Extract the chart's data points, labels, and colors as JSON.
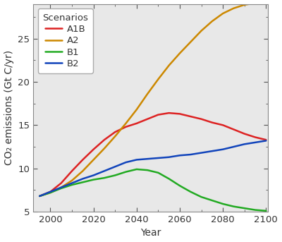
{
  "title": "",
  "xlabel": "Year",
  "ylabel": "CO₂ emissions (Gt C/yr)",
  "legend_title": "Scenarios",
  "xlim": [
    1992,
    2101
  ],
  "ylim": [
    5,
    29
  ],
  "yticks": [
    5,
    10,
    15,
    20,
    25
  ],
  "xticks": [
    2000,
    2020,
    2040,
    2060,
    2080,
    2100
  ],
  "scenarios": {
    "A1B": {
      "color": "#dd2222",
      "years": [
        1995,
        2000,
        2005,
        2010,
        2015,
        2020,
        2025,
        2030,
        2035,
        2040,
        2045,
        2050,
        2055,
        2060,
        2065,
        2070,
        2075,
        2080,
        2085,
        2090,
        2095,
        2100
      ],
      "values": [
        6.8,
        7.3,
        8.3,
        9.7,
        11.0,
        12.2,
        13.3,
        14.2,
        14.8,
        15.2,
        15.7,
        16.2,
        16.4,
        16.3,
        16.0,
        15.7,
        15.3,
        15.0,
        14.5,
        14.0,
        13.6,
        13.3
      ]
    },
    "A2": {
      "color": "#cc8800",
      "years": [
        1995,
        2000,
        2005,
        2010,
        2015,
        2020,
        2025,
        2030,
        2035,
        2040,
        2045,
        2050,
        2055,
        2060,
        2065,
        2070,
        2075,
        2080,
        2085,
        2090,
        2095,
        2100
      ],
      "values": [
        6.8,
        7.2,
        7.8,
        8.6,
        9.7,
        11.0,
        12.3,
        13.7,
        15.2,
        16.8,
        18.6,
        20.3,
        21.9,
        23.3,
        24.6,
        25.9,
        27.0,
        27.9,
        28.5,
        28.9,
        29.1,
        29.2
      ]
    },
    "B1": {
      "color": "#22aa22",
      "years": [
        1995,
        2000,
        2005,
        2010,
        2015,
        2020,
        2025,
        2030,
        2035,
        2040,
        2045,
        2050,
        2055,
        2060,
        2065,
        2070,
        2075,
        2080,
        2085,
        2090,
        2095,
        2100
      ],
      "values": [
        6.8,
        7.2,
        7.7,
        8.1,
        8.4,
        8.7,
        8.9,
        9.2,
        9.6,
        9.9,
        9.8,
        9.5,
        8.8,
        8.0,
        7.3,
        6.7,
        6.3,
        5.9,
        5.6,
        5.4,
        5.2,
        5.1
      ]
    },
    "B2": {
      "color": "#1144bb",
      "years": [
        1995,
        2000,
        2005,
        2010,
        2015,
        2020,
        2025,
        2030,
        2035,
        2040,
        2045,
        2050,
        2055,
        2060,
        2065,
        2070,
        2075,
        2080,
        2085,
        2090,
        2095,
        2100
      ],
      "values": [
        6.8,
        7.3,
        7.8,
        8.3,
        8.8,
        9.2,
        9.7,
        10.2,
        10.7,
        11.0,
        11.1,
        11.2,
        11.3,
        11.5,
        11.6,
        11.8,
        12.0,
        12.2,
        12.5,
        12.8,
        13.0,
        13.2
      ]
    }
  },
  "plot_bg_color": "#e8e8e8",
  "background_color": "#ffffff",
  "spine_color": "#888888",
  "tick_color": "#555555",
  "label_color": "#333333",
  "legend_fontsize": 9.5,
  "label_fontsize": 10,
  "tick_fontsize": 9.5,
  "linewidth": 1.8
}
